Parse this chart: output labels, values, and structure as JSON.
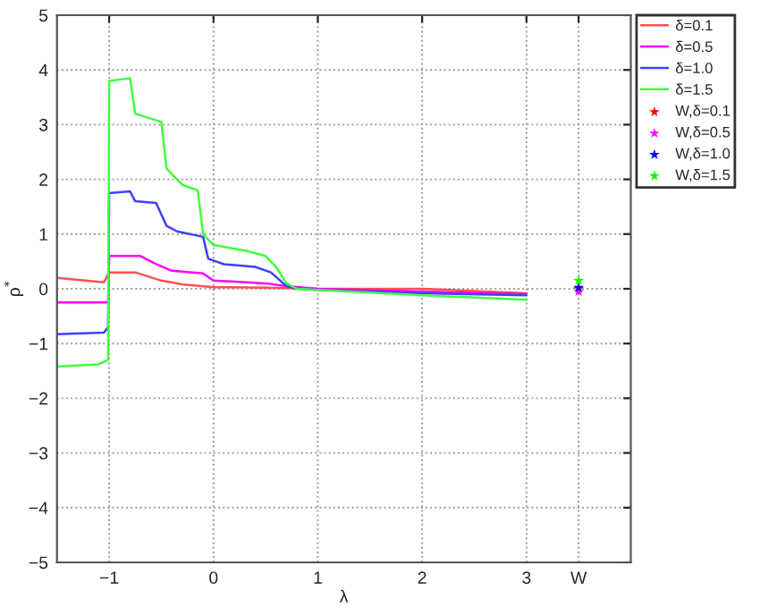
{
  "chart_data": {
    "type": "line",
    "xlabel": "λ",
    "ylabel": "ρ$^{*}$",
    "xlim": [
      -1.5,
      4
    ],
    "xticks": [
      -1,
      0,
      1,
      2,
      3,
      {
        "value": 3.5,
        "label": "W"
      }
    ],
    "ylim": [
      -5,
      5
    ],
    "yticks": [
      -5,
      -4,
      -3,
      -2,
      -1,
      0,
      1,
      2,
      3,
      4,
      5
    ],
    "grid": true,
    "legend": "top right",
    "line_style": "solid",
    "series": [
      {
        "name": "δ=0.1",
        "color": "#ff5050",
        "x": [
          -1.5,
          -1.05,
          -1.0,
          -0.75,
          -0.5,
          -0.3,
          0,
          0.5,
          1,
          2,
          3
        ],
        "values": [
          0.2,
          0.12,
          0.3,
          0.3,
          0.15,
          0.08,
          0.03,
          0.02,
          0.0,
          0.0,
          -0.08
        ]
      },
      {
        "name": "δ=0.5",
        "color": "#ff00ff",
        "x": [
          -1.5,
          -1.01,
          -1.0,
          -0.7,
          -0.55,
          -0.4,
          -0.1,
          0.0,
          0.5,
          0.7,
          1,
          2,
          3
        ],
        "values": [
          -0.25,
          -0.25,
          0.6,
          0.6,
          0.45,
          0.33,
          0.28,
          0.15,
          0.1,
          0.05,
          0.0,
          -0.05,
          -0.1
        ]
      },
      {
        "name": "δ=1.0",
        "color": "#4040ff",
        "x": [
          -1.5,
          -1.05,
          -1.01,
          -1.0,
          -0.8,
          -0.75,
          -0.55,
          -0.45,
          -0.35,
          -0.1,
          -0.05,
          0.1,
          0.4,
          0.55,
          0.7,
          0.8,
          1,
          2,
          3
        ],
        "values": [
          -0.83,
          -0.8,
          -0.7,
          1.75,
          1.78,
          1.6,
          1.57,
          1.15,
          1.05,
          0.95,
          0.55,
          0.45,
          0.4,
          0.3,
          0.05,
          0.0,
          -0.02,
          -0.08,
          -0.12
        ]
      },
      {
        "name": "δ=1.5",
        "color": "#40ff40",
        "x": [
          -1.5,
          -1.1,
          -1.01,
          -1.0,
          -0.8,
          -0.75,
          -0.5,
          -0.45,
          -0.3,
          -0.15,
          -0.1,
          0.0,
          0.3,
          0.5,
          0.6,
          0.7,
          0.8,
          1.0,
          2,
          3
        ],
        "values": [
          -1.42,
          -1.38,
          -1.3,
          3.8,
          3.85,
          3.2,
          3.05,
          2.2,
          1.9,
          1.8,
          1.0,
          0.8,
          0.7,
          0.6,
          0.4,
          0.1,
          0.0,
          -0.02,
          -0.12,
          -0.2
        ]
      },
      {
        "name": "W,δ=0.1",
        "color": "#ff0000",
        "type": "scatter",
        "marker": "star",
        "x": [
          3.5
        ],
        "values": [
          0.0
        ]
      },
      {
        "name": "W,δ=0.5",
        "color": "#ff00ff",
        "type": "scatter",
        "marker": "star",
        "x": [
          3.5
        ],
        "values": [
          -0.05
        ]
      },
      {
        "name": "W,δ=1.0",
        "color": "#0000ff",
        "type": "scatter",
        "marker": "star",
        "x": [
          3.5
        ],
        "values": [
          0.02
        ]
      },
      {
        "name": "W,δ=1.5",
        "color": "#00ff00",
        "type": "scatter",
        "marker": "star",
        "x": [
          3.5
        ],
        "values": [
          0.15
        ]
      }
    ]
  }
}
